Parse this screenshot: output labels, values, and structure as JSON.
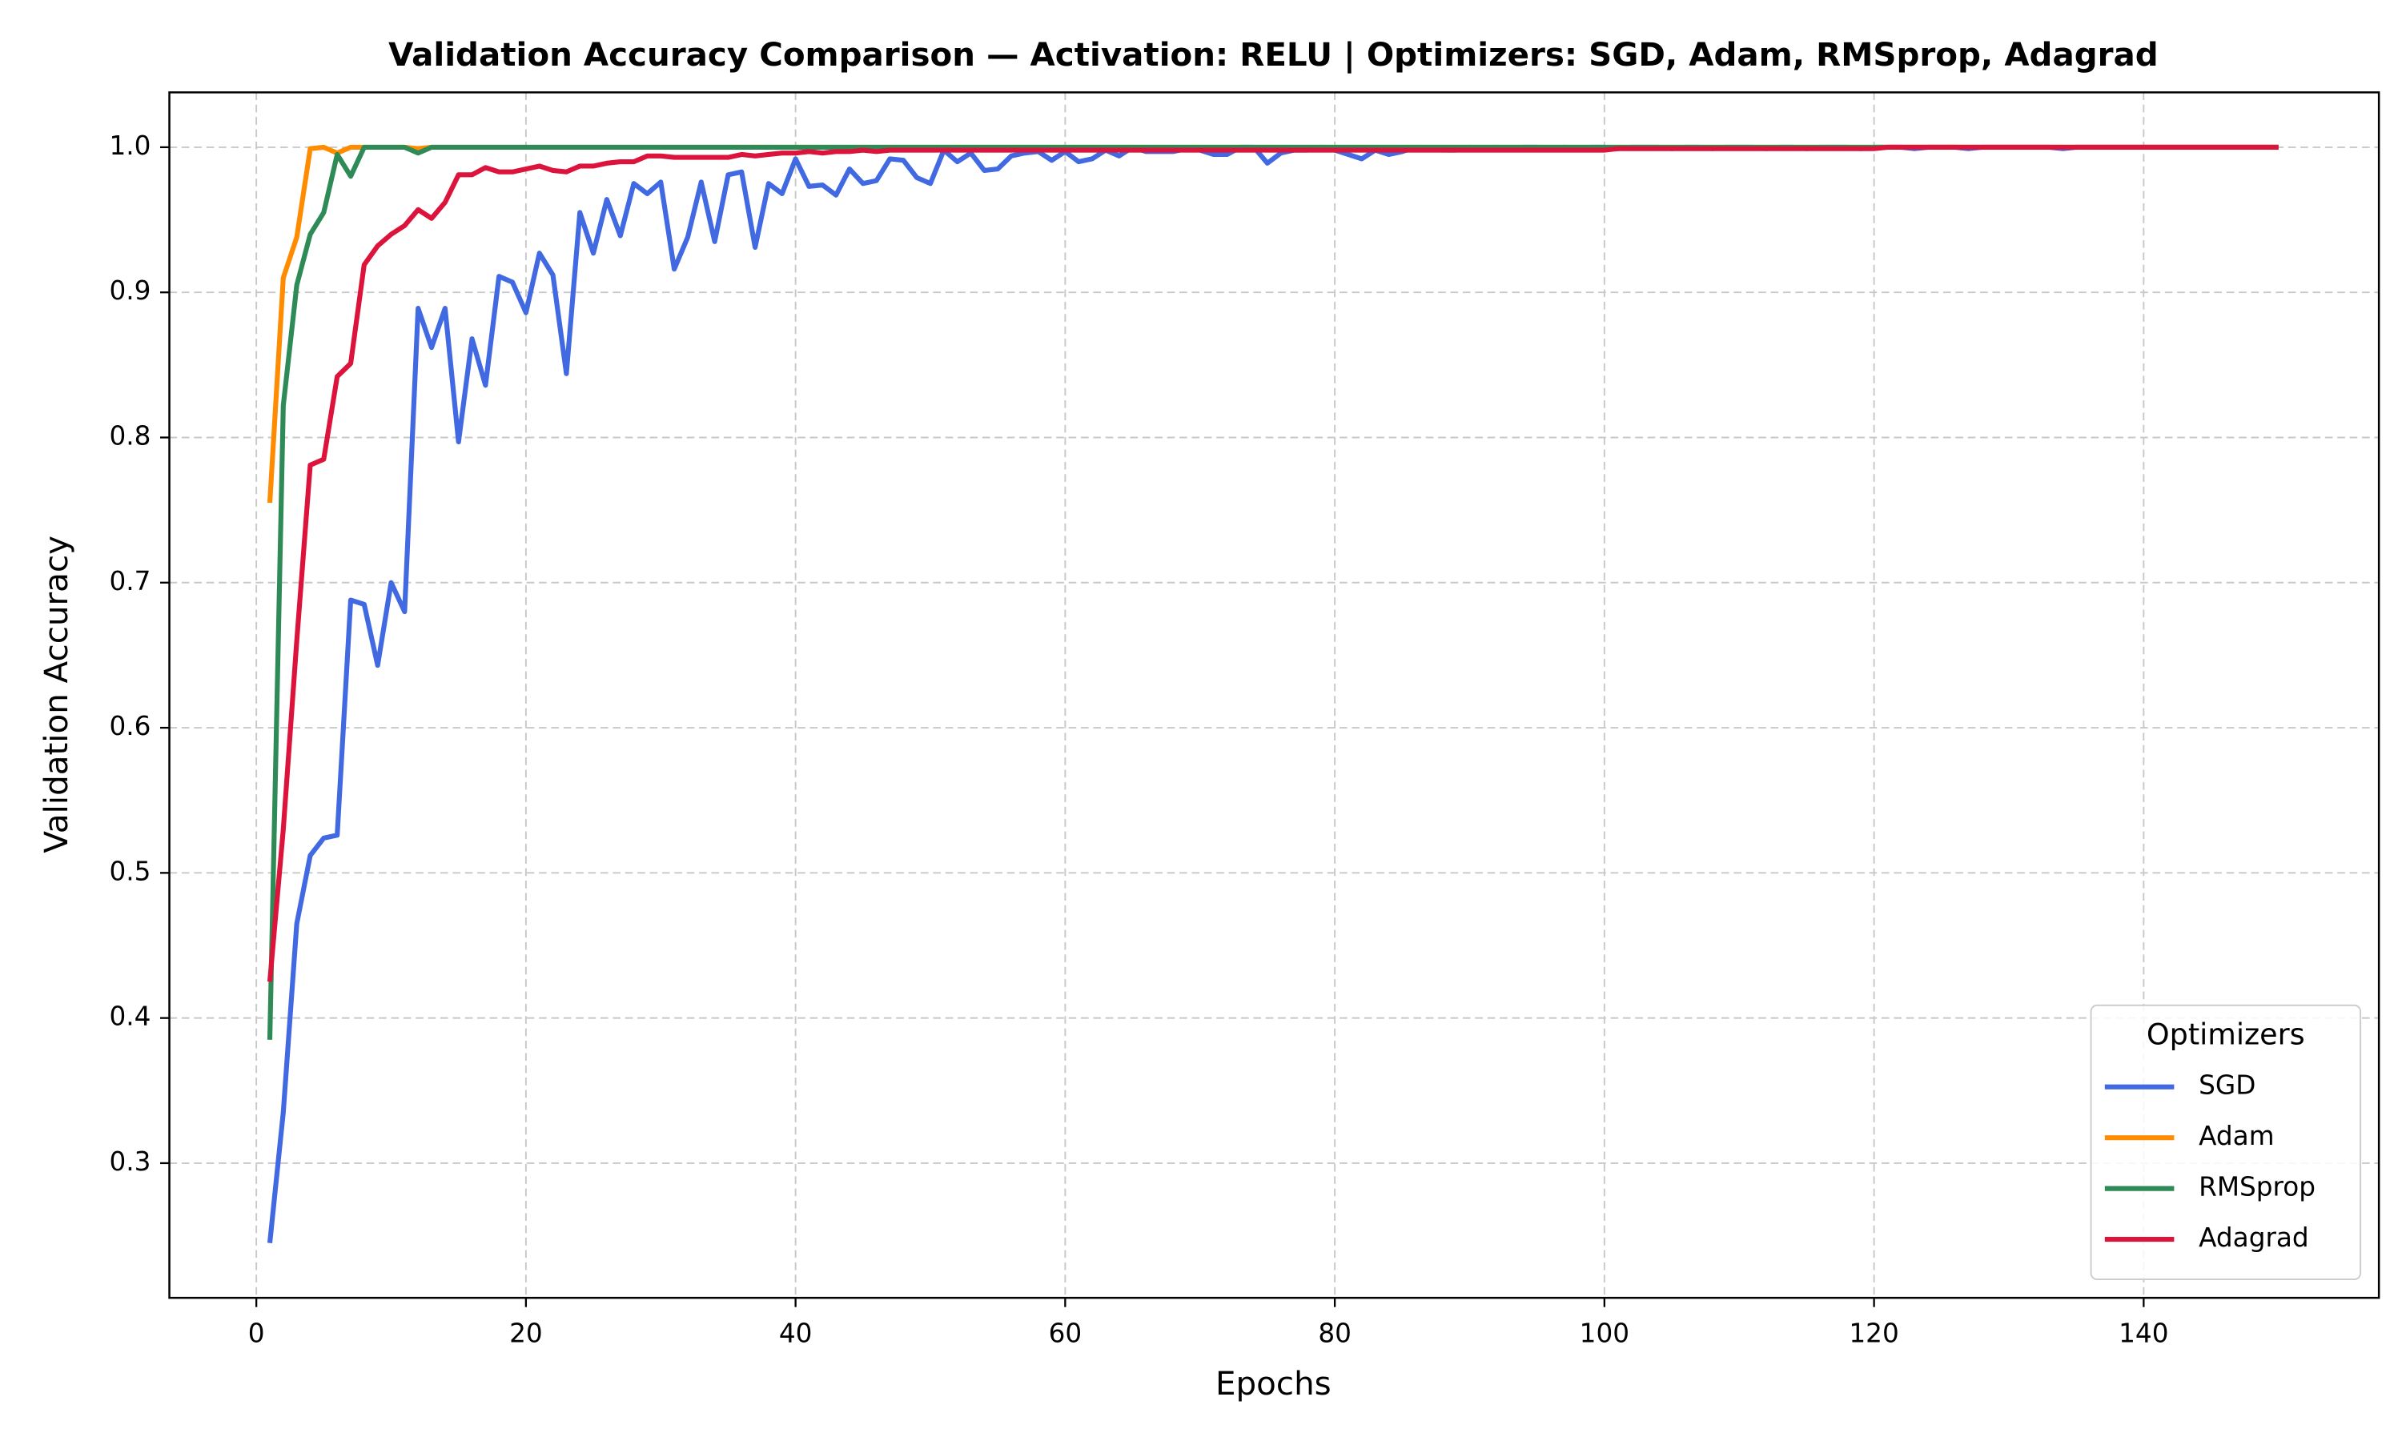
{
  "chart_data": {
    "type": "line",
    "title": "Validation Accuracy Comparison — Activation: RELU | Optimizers: SGD, Adam, RMSprop, Adagrad",
    "x_label": "Epochs",
    "y_label": "Validation Accuracy",
    "legend_title": "Optimizers",
    "legend_position": "lower right",
    "grid": true,
    "xlim": [
      -6.45,
      157.45
    ],
    "ylim": [
      0.2072,
      1.0378
    ],
    "xticks": [
      0,
      20,
      40,
      60,
      80,
      100,
      120,
      140
    ],
    "yticks": [
      0.3,
      0.4,
      0.5,
      0.6,
      0.7,
      0.8,
      0.9,
      {
        "value": 1,
        "label": "1.0"
      }
    ],
    "x": [
      1,
      2,
      3,
      4,
      5,
      6,
      7,
      8,
      9,
      10,
      11,
      12,
      13,
      14,
      15,
      16,
      17,
      18,
      19,
      20,
      21,
      22,
      23,
      24,
      25,
      26,
      27,
      28,
      29,
      30,
      31,
      32,
      33,
      34,
      35,
      36,
      37,
      38,
      39,
      40,
      41,
      42,
      43,
      44,
      45,
      46,
      47,
      48,
      49,
      50,
      51,
      52,
      53,
      54,
      55,
      56,
      57,
      58,
      59,
      60,
      61,
      62,
      63,
      64,
      65,
      66,
      67,
      68,
      69,
      70,
      71,
      72,
      73,
      74,
      75,
      76,
      77,
      78,
      79,
      80,
      81,
      82,
      83,
      84,
      85,
      86,
      87,
      88,
      89,
      90,
      91,
      92,
      93,
      94,
      95,
      96,
      97,
      98,
      99,
      100,
      101,
      102,
      103,
      104,
      105,
      106,
      107,
      108,
      109,
      110,
      111,
      112,
      113,
      114,
      115,
      116,
      117,
      118,
      119,
      120,
      121,
      122,
      123,
      124,
      125,
      126,
      127,
      128,
      129,
      130,
      131,
      132,
      133,
      134,
      135,
      136,
      137,
      138,
      139,
      140,
      141,
      142,
      143,
      144,
      145,
      146,
      147,
      148,
      149,
      150
    ],
    "series": [
      {
        "name": "SGD",
        "color": "#4169e1",
        "values": [
          0.245,
          0.335,
          0.465,
          0.512,
          0.524,
          0.526,
          0.688,
          0.685,
          0.643,
          0.7,
          0.68,
          0.889,
          0.862,
          0.889,
          0.797,
          0.868,
          0.836,
          0.911,
          0.907,
          0.886,
          0.927,
          0.912,
          0.844,
          0.955,
          0.927,
          0.964,
          0.939,
          0.975,
          0.968,
          0.976,
          0.916,
          0.938,
          0.976,
          0.935,
          0.981,
          0.983,
          0.931,
          0.975,
          0.968,
          0.992,
          0.973,
          0.974,
          0.967,
          0.985,
          0.975,
          0.977,
          0.992,
          0.991,
          0.979,
          0.975,
          0.998,
          0.99,
          0.996,
          0.984,
          0.985,
          0.994,
          0.996,
          0.997,
          0.991,
          0.997,
          0.99,
          0.992,
          0.998,
          0.994,
          1,
          0.997,
          0.997,
          0.997,
          0.999,
          0.998,
          0.995,
          0.995,
          1,
          1,
          0.989,
          0.996,
          0.998,
          0.998,
          1,
          0.998,
          0.995,
          0.992,
          0.998,
          0.995,
          0.997,
          1,
          0.999,
          0.998,
          0.998,
          1,
          0.999,
          1,
          0.999,
          1,
          1,
          0.999,
          1,
          0.999,
          1,
          1,
          0.999,
          1,
          1,
          1,
          0.999,
          1,
          1,
          0.999,
          1,
          1,
          1,
          0.999,
          1,
          1,
          0.999,
          1,
          1,
          1,
          0.999,
          1,
          1,
          1,
          0.999,
          1,
          1,
          1,
          0.999,
          1,
          1,
          1,
          1,
          1,
          1,
          0.999,
          1,
          1,
          1,
          1,
          1,
          1,
          1,
          1,
          1,
          1,
          1,
          1,
          1,
          1,
          1,
          1
        ]
      },
      {
        "name": "Adam",
        "color": "#ff8c00",
        "values": [
          0.755,
          0.91,
          0.938,
          0.999,
          1,
          0.996,
          1,
          1,
          1,
          1,
          1,
          0.999,
          1,
          1,
          1,
          1,
          1,
          1,
          1,
          1,
          1,
          1,
          1,
          1,
          1,
          1,
          1,
          1,
          1,
          1,
          1,
          1,
          1,
          1,
          1,
          1,
          1,
          1,
          1,
          1,
          1,
          1,
          1,
          1,
          1,
          1,
          1,
          1,
          1,
          1,
          1,
          1,
          1,
          1,
          1,
          1,
          1,
          1,
          1,
          1,
          1,
          1,
          1,
          1,
          1,
          1,
          1,
          1,
          1,
          1,
          1,
          1,
          1,
          1,
          1,
          1,
          1,
          1,
          1,
          1,
          1,
          1,
          1,
          1,
          1,
          1,
          1,
          1,
          1,
          1,
          1,
          1,
          1,
          1,
          1,
          1,
          1,
          1,
          1,
          1,
          1,
          1,
          1,
          1,
          1,
          1,
          1,
          1,
          1,
          1,
          1,
          1,
          1,
          1,
          1,
          1,
          1,
          1,
          1,
          1,
          1,
          1,
          1,
          1,
          1,
          1,
          1,
          1,
          1,
          1,
          1,
          1,
          1,
          1,
          1,
          1,
          1,
          1,
          1,
          1,
          1,
          1,
          1,
          1,
          1,
          1,
          1,
          1,
          1,
          1
        ]
      },
      {
        "name": "RMSprop",
        "color": "#2e8b57",
        "values": [
          0.385,
          0.822,
          0.905,
          0.94,
          0.955,
          0.995,
          0.98,
          1,
          1,
          1,
          1,
          0.996,
          1,
          1,
          1,
          1,
          1,
          1,
          1,
          1,
          1,
          1,
          1,
          1,
          1,
          1,
          1,
          1,
          1,
          1,
          1,
          1,
          1,
          1,
          1,
          1,
          1,
          1,
          1,
          1,
          1,
          1,
          1,
          1,
          1,
          1,
          1,
          1,
          1,
          1,
          1,
          1,
          1,
          1,
          1,
          1,
          1,
          1,
          1,
          1,
          1,
          1,
          1,
          1,
          1,
          1,
          1,
          1,
          1,
          1,
          1,
          1,
          1,
          1,
          1,
          1,
          1,
          1,
          1,
          1,
          1,
          1,
          1,
          1,
          1,
          1,
          1,
          1,
          1,
          1,
          1,
          1,
          1,
          1,
          1,
          1,
          1,
          1,
          1,
          1,
          1,
          1,
          1,
          1,
          1,
          1,
          1,
          1,
          1,
          1,
          1,
          1,
          1,
          1,
          1,
          1,
          1,
          1,
          1,
          1,
          1,
          1,
          1,
          1,
          1,
          1,
          1,
          1,
          1,
          1,
          1,
          1,
          1,
          1,
          1,
          1,
          1,
          1,
          1,
          1,
          1,
          1,
          1,
          1,
          1,
          1,
          1,
          1,
          1,
          1
        ]
      },
      {
        "name": "Adagrad",
        "color": "#dc143c",
        "values": [
          0.425,
          0.53,
          0.66,
          0.781,
          0.785,
          0.842,
          0.851,
          0.919,
          0.932,
          0.94,
          0.946,
          0.957,
          0.951,
          0.962,
          0.981,
          0.981,
          0.986,
          0.983,
          0.983,
          0.985,
          0.987,
          0.984,
          0.983,
          0.987,
          0.987,
          0.989,
          0.99,
          0.99,
          0.994,
          0.994,
          0.993,
          0.993,
          0.993,
          0.993,
          0.993,
          0.995,
          0.994,
          0.995,
          0.996,
          0.996,
          0.997,
          0.996,
          0.997,
          0.997,
          0.998,
          0.997,
          0.998,
          0.998,
          0.998,
          0.998,
          0.998,
          0.998,
          0.998,
          0.998,
          0.998,
          0.998,
          0.998,
          0.998,
          0.998,
          0.998,
          0.998,
          0.998,
          0.998,
          0.998,
          0.998,
          0.998,
          0.998,
          0.998,
          0.998,
          0.998,
          0.998,
          0.998,
          0.998,
          0.998,
          0.998,
          0.998,
          0.998,
          0.998,
          0.998,
          0.998,
          0.998,
          0.998,
          0.998,
          0.998,
          0.998,
          0.998,
          0.998,
          0.998,
          0.998,
          0.998,
          0.998,
          0.998,
          0.998,
          0.998,
          0.998,
          0.998,
          0.998,
          0.998,
          0.998,
          0.998,
          0.999,
          0.999,
          0.999,
          0.999,
          0.999,
          0.999,
          0.999,
          0.999,
          0.999,
          0.999,
          0.999,
          0.999,
          0.999,
          0.999,
          0.999,
          0.999,
          0.999,
          0.999,
          0.999,
          0.999,
          1,
          1,
          1,
          1,
          1,
          1,
          1,
          1,
          1,
          1,
          1,
          1,
          1,
          1,
          1,
          1,
          1,
          1,
          1,
          1,
          1,
          1,
          1,
          1,
          1,
          1,
          1,
          1,
          1,
          1
        ]
      }
    ]
  }
}
